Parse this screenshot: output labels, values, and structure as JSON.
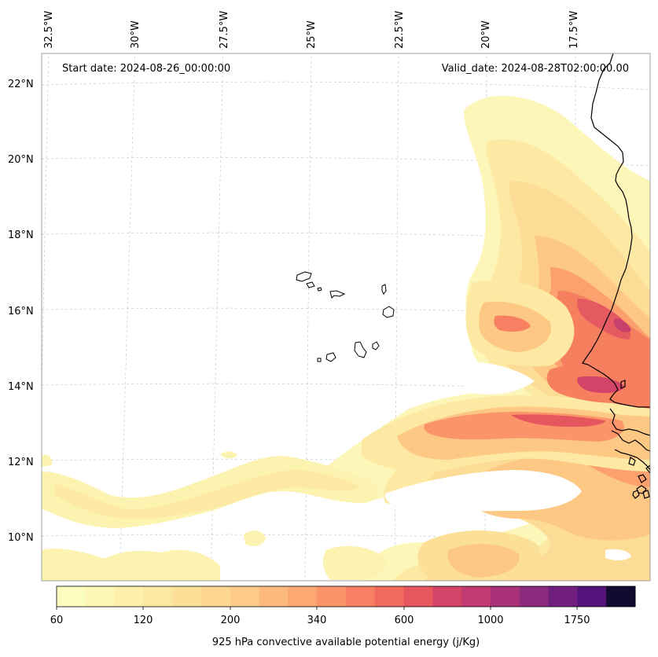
{
  "map": {
    "start_date": "Start date: 2024-08-26_00:00:00",
    "valid_date": "Valid_date: 2024-08-28T02:00:00.00",
    "lon_labels": [
      "32.5°W",
      "30°W",
      "27.5°W",
      "25°W",
      "22.5°W",
      "20°W",
      "17.5°W"
    ],
    "lat_labels": [
      "22°N",
      "20°N",
      "18°N",
      "16°N",
      "14°N",
      "12°N",
      "10°N"
    ],
    "field": "925 hPa convective available potential energy",
    "features": [
      "Cape Verde islands",
      "West African coastline (Mauritania, Senegal, Gambia, Guinea-Bissau, Guinea)"
    ]
  },
  "colorbar": {
    "title": "925 hPa convective available potential energy (j/Kg)",
    "tick_labels": [
      "60",
      "120",
      "200",
      "340",
      "600",
      "1000",
      "1750"
    ],
    "colors": [
      "#fcfdbf",
      "#fdf6b5",
      "#fef0ac",
      "#fde8a1",
      "#fde098",
      "#fdd690",
      "#fdca87",
      "#fdba7c",
      "#fca873",
      "#fb9469",
      "#f88062",
      "#f06b5e",
      "#e5565f",
      "#d44468",
      "#c13a72",
      "#a9327a",
      "#8e2a7e",
      "#701f7f",
      "#53137a",
      "#110a30"
    ]
  }
}
